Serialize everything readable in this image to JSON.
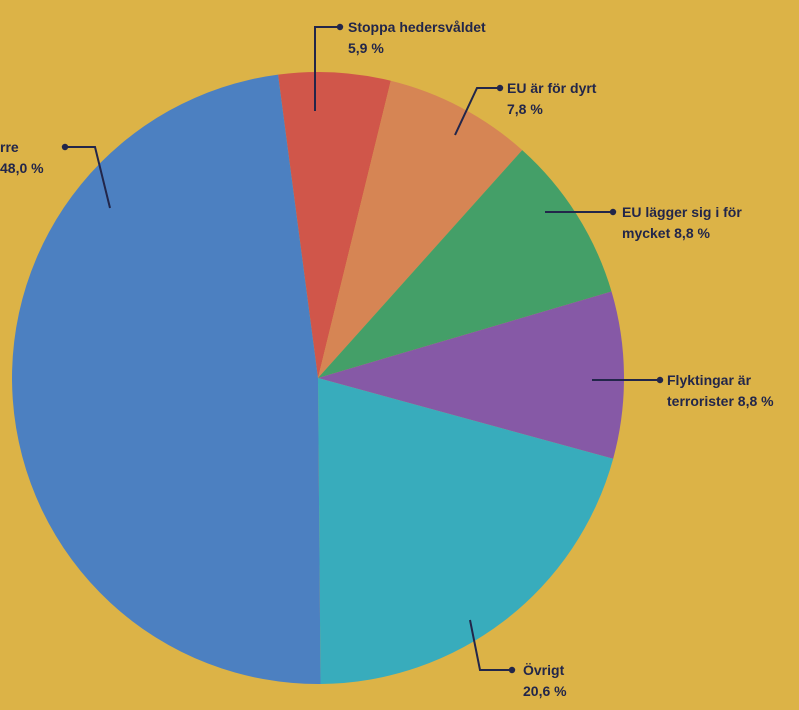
{
  "chart_data": {
    "type": "pie",
    "background": "#dcb347",
    "label_color": "#22264a",
    "slices": [
      {
        "key": "hedersvald",
        "label_lines": [
          "Stoppa hedersvåldet",
          "5,9 %"
        ],
        "value": 5.9,
        "color": "#d0564a"
      },
      {
        "key": "eu-dyrt",
        "label_lines": [
          "EU är för dyrt",
          "7,8 %"
        ],
        "value": 7.8,
        "color": "#d68554"
      },
      {
        "key": "eu-lagger",
        "label_lines": [
          "EU lägger sig i för",
          "mycket 8,8 %"
        ],
        "value": 8.8,
        "color": "#449f68"
      },
      {
        "key": "flyktingar",
        "label_lines": [
          "Flyktingar är",
          "terrorister 8,8 %"
        ],
        "value": 8.8,
        "color": "#8659a6"
      },
      {
        "key": "ovrigt",
        "label_lines": [
          "Övrigt",
          "20,6 %"
        ],
        "value": 20.6,
        "color": "#38acbc"
      },
      {
        "key": "left",
        "label_lines": [
          "rre",
          "48,0 %"
        ],
        "value": 48.0,
        "color": "#4c80c1"
      }
    ]
  }
}
